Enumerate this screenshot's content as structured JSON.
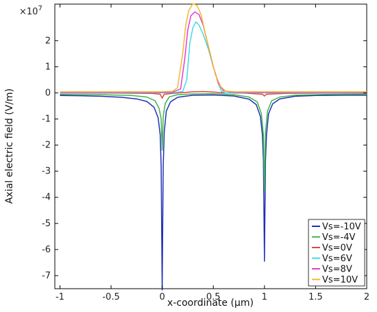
{
  "chart_data": {
    "type": "line",
    "xlabel": "x-coordinate (µm)",
    "ylabel": "Axial electric field (V/m)",
    "y_multiplier_label": "×10",
    "y_multiplier_exponent": "7",
    "xlim": [
      -1.05,
      2.0
    ],
    "ylim": [
      -7.5,
      3.4
    ],
    "x_ticks": [
      -1,
      -0.5,
      0,
      0.5,
      1,
      1.5,
      2
    ],
    "x_tick_labels": [
      "-1",
      "-0.5",
      "0",
      "0.5",
      "1",
      "1.5",
      "2"
    ],
    "y_ticks": [
      -7,
      -6,
      -5,
      -4,
      -3,
      -2,
      -1,
      0,
      1,
      2
    ],
    "y_tick_labels": [
      "-7",
      "-6",
      "-5",
      "-4",
      "-3",
      "-2",
      "-1",
      "0",
      "1",
      "2"
    ],
    "grid": false,
    "legend_position": "bottom-right",
    "series": [
      {
        "name": "Vs=-10V",
        "color": "#1f2fb4",
        "x": [
          -1.0,
          -0.8,
          -0.6,
          -0.4,
          -0.25,
          -0.15,
          -0.08,
          -0.04,
          -0.02,
          -0.01,
          0.0,
          0.01,
          0.02,
          0.04,
          0.08,
          0.15,
          0.3,
          0.5,
          0.7,
          0.85,
          0.92,
          0.96,
          0.98,
          0.99,
          1.0,
          1.01,
          1.02,
          1.04,
          1.08,
          1.15,
          1.3,
          1.5,
          1.8,
          2.0
        ],
        "y": [
          -0.1,
          -0.11,
          -0.13,
          -0.17,
          -0.23,
          -0.33,
          -0.55,
          -0.95,
          -1.6,
          -2.8,
          -7.55,
          -2.8,
          -1.5,
          -0.7,
          -0.35,
          -0.17,
          -0.09,
          -0.08,
          -0.12,
          -0.24,
          -0.45,
          -0.9,
          -1.6,
          -2.6,
          -6.45,
          -2.6,
          -1.6,
          -0.8,
          -0.42,
          -0.23,
          -0.13,
          -0.1,
          -0.09,
          -0.09
        ]
      },
      {
        "name": "Vs=-4V",
        "color": "#3cb44b",
        "x": [
          -1.0,
          -0.6,
          -0.3,
          -0.15,
          -0.07,
          -0.03,
          -0.01,
          0.0,
          0.01,
          0.03,
          0.07,
          0.15,
          0.3,
          0.5,
          0.7,
          0.85,
          0.93,
          0.97,
          0.99,
          1.0,
          1.01,
          1.03,
          1.07,
          1.15,
          1.3,
          1.6,
          2.0
        ],
        "y": [
          -0.06,
          -0.07,
          -0.1,
          -0.16,
          -0.3,
          -0.6,
          -1.0,
          -2.2,
          -0.9,
          -0.4,
          -0.15,
          -0.07,
          -0.04,
          -0.03,
          -0.07,
          -0.16,
          -0.35,
          -0.8,
          -1.6,
          -3.8,
          -1.5,
          -0.7,
          -0.3,
          -0.16,
          -0.09,
          -0.06,
          -0.05
        ]
      },
      {
        "name": "Vs=0V",
        "color": "#e0453c",
        "x": [
          -1.0,
          -0.5,
          -0.1,
          -0.02,
          0.0,
          0.02,
          0.1,
          0.2,
          0.3,
          0.4,
          0.5,
          0.6,
          0.8,
          0.98,
          1.0,
          1.02,
          1.2,
          1.6,
          2.0
        ],
        "y": [
          -0.01,
          -0.01,
          -0.02,
          -0.05,
          -0.2,
          -0.05,
          -0.02,
          0.01,
          0.04,
          0.05,
          0.03,
          0.0,
          -0.01,
          -0.05,
          -0.12,
          -0.05,
          -0.02,
          -0.01,
          -0.01
        ]
      },
      {
        "name": "Vs=6V",
        "color": "#3fd9e6",
        "x": [
          -1.0,
          -0.5,
          0.0,
          0.1,
          0.2,
          0.24,
          0.27,
          0.3,
          0.33,
          0.36,
          0.4,
          0.45,
          0.5,
          0.55,
          0.58,
          0.62,
          0.8,
          1.0,
          1.5,
          2.0
        ],
        "y": [
          0.0,
          0.0,
          0.0,
          0.01,
          0.05,
          0.5,
          1.9,
          2.5,
          2.72,
          2.6,
          2.25,
          1.7,
          1.0,
          0.35,
          0.05,
          0.0,
          0.0,
          0.0,
          0.0,
          0.0
        ]
      },
      {
        "name": "Vs=8V",
        "color": "#e637d9",
        "x": [
          -1.0,
          -0.5,
          0.0,
          0.1,
          0.18,
          0.22,
          0.25,
          0.28,
          0.32,
          0.36,
          0.4,
          0.45,
          0.5,
          0.55,
          0.6,
          0.7,
          1.0,
          1.5,
          2.0
        ],
        "y": [
          0.02,
          0.02,
          0.02,
          0.03,
          0.15,
          1.3,
          2.4,
          2.95,
          3.1,
          3.0,
          2.6,
          1.8,
          1.0,
          0.35,
          0.08,
          0.02,
          0.02,
          0.02,
          0.02
        ]
      },
      {
        "name": "Vs=10V",
        "color": "#f2b829",
        "x": [
          -1.0,
          -0.5,
          0.0,
          0.1,
          0.15,
          0.2,
          0.23,
          0.26,
          0.3,
          0.34,
          0.38,
          0.42,
          0.47,
          0.52,
          0.57,
          0.62,
          0.7,
          1.0,
          1.5,
          2.0
        ],
        "y": [
          0.04,
          0.04,
          0.04,
          0.06,
          0.2,
          1.5,
          2.6,
          3.15,
          3.42,
          3.35,
          3.0,
          2.3,
          1.5,
          0.7,
          0.25,
          0.07,
          0.04,
          0.04,
          0.04,
          0.04
        ]
      }
    ]
  }
}
